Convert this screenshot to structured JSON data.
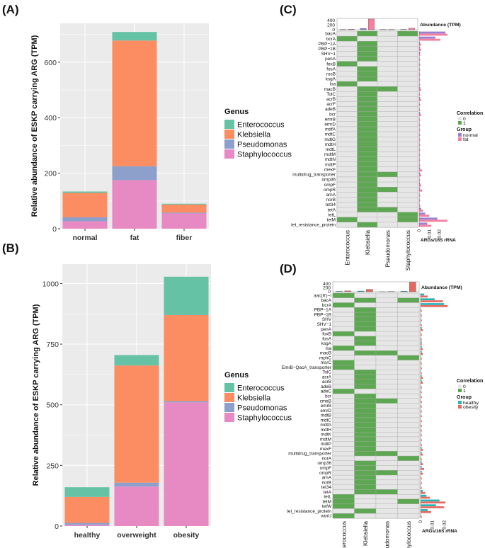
{
  "panels": {
    "a": "(A)",
    "b": "(B)",
    "c": "(C)",
    "d": "(D)"
  },
  "chart_data": [
    {
      "type": "bar",
      "stacked": true,
      "panel": "(A)",
      "ylabel": "Relative abundance of ESKP carrying ARG (TPM)",
      "categories": [
        "normal",
        "fat",
        "fiber"
      ],
      "yticks": [
        0,
        200,
        400,
        600
      ],
      "ylim": [
        0,
        740
      ],
      "legend_title": "Genus",
      "series": [
        {
          "name": "Staphylococcus",
          "color": "#E78AC3",
          "values": [
            27,
            175,
            55
          ]
        },
        {
          "name": "Pseudomonas",
          "color": "#8DA0CB",
          "values": [
            14,
            50,
            3
          ]
        },
        {
          "name": "Klebsiella",
          "color": "#FC8D62",
          "values": [
            88,
            453,
            29
          ]
        },
        {
          "name": "Enterococcus",
          "color": "#66C2A5",
          "values": [
            5,
            31,
            3
          ]
        }
      ]
    },
    {
      "type": "bar",
      "stacked": true,
      "panel": "(B)",
      "ylabel": "Relative abundance of ESKP carrying ARG (TPM)",
      "categories": [
        "healthy",
        "overweight",
        "obesity"
      ],
      "yticks": [
        0,
        250,
        500,
        750,
        1000
      ],
      "ylim": [
        0,
        1080
      ],
      "legend_title": "Genus",
      "series": [
        {
          "name": "Staphylococcus",
          "color": "#E78AC3",
          "values": [
            5,
            163,
            510
          ]
        },
        {
          "name": "Pseudomonas",
          "color": "#8DA0CB",
          "values": [
            8,
            16,
            5
          ]
        },
        {
          "name": "Klebsiella",
          "color": "#FC8D62",
          "values": [
            107,
            483,
            355
          ]
        },
        {
          "name": "Enterococcus",
          "color": "#66C2A5",
          "values": [
            40,
            43,
            158
          ]
        }
      ]
    },
    {
      "type": "heatmap",
      "panel": "(C)",
      "columns": [
        "Enterococcus",
        "Klebsiella",
        "Pseudomonas",
        "Staphylococcus"
      ],
      "rows": [
        "bacA",
        "bcrA",
        "PBP−1A",
        "PBP−1B",
        "SHV−1",
        "penA",
        "fexB",
        "fosA",
        "rosB",
        "ksgA",
        "lsa",
        "macB",
        "TolC",
        "acrB",
        "acrF",
        "adeB",
        "bcr",
        "emrB",
        "emrD",
        "mdfA",
        "mdtC",
        "mdtG",
        "mdtH",
        "mdtL",
        "mdtM",
        "mdtN",
        "mdtP",
        "mexF",
        "multidrug_transporter",
        "omp36",
        "ompF",
        "ompR",
        "arnA",
        "norB",
        "tet34",
        "tetA",
        "tetL",
        "tetM",
        "tet_resistance_protein"
      ],
      "matrix": [
        [
          0,
          1,
          0,
          1
        ],
        [
          1,
          0,
          0,
          0
        ],
        [
          0,
          1,
          0,
          0
        ],
        [
          0,
          1,
          0,
          0
        ],
        [
          0,
          1,
          0,
          0
        ],
        [
          0,
          1,
          0,
          0
        ],
        [
          1,
          0,
          0,
          0
        ],
        [
          0,
          1,
          0,
          0
        ],
        [
          0,
          1,
          0,
          0
        ],
        [
          0,
          1,
          0,
          0
        ],
        [
          1,
          0,
          0,
          0
        ],
        [
          0,
          1,
          1,
          0
        ],
        [
          0,
          1,
          0,
          0
        ],
        [
          0,
          1,
          0,
          0
        ],
        [
          0,
          1,
          0,
          0
        ],
        [
          0,
          1,
          0,
          0
        ],
        [
          0,
          1,
          0,
          0
        ],
        [
          0,
          1,
          0,
          0
        ],
        [
          0,
          1,
          0,
          0
        ],
        [
          0,
          1,
          0,
          0
        ],
        [
          0,
          1,
          0,
          0
        ],
        [
          0,
          1,
          0,
          0
        ],
        [
          0,
          1,
          0,
          0
        ],
        [
          0,
          1,
          0,
          0
        ],
        [
          0,
          1,
          0,
          0
        ],
        [
          0,
          1,
          0,
          0
        ],
        [
          0,
          1,
          0,
          0
        ],
        [
          0,
          1,
          0,
          0
        ],
        [
          0,
          1,
          1,
          0
        ],
        [
          0,
          1,
          0,
          0
        ],
        [
          0,
          1,
          0,
          0
        ],
        [
          0,
          1,
          1,
          0
        ],
        [
          0,
          1,
          0,
          0
        ],
        [
          0,
          1,
          0,
          0
        ],
        [
          0,
          1,
          0,
          0
        ],
        [
          0,
          1,
          1,
          0
        ],
        [
          0,
          0,
          0,
          1
        ],
        [
          1,
          0,
          0,
          1
        ],
        [
          0,
          1,
          0,
          0
        ]
      ],
      "top_bar_title": "Abundance (TPM)",
      "top_bar_ticks": [
        "400",
        "200",
        "0"
      ],
      "top_bar_max": 500,
      "top_bars": [
        [
          10,
          22
        ],
        [
          60,
          470
        ],
        [
          5,
          12
        ],
        [
          15,
          70
        ]
      ],
      "side_bar_title": "ARGs/16S rRNA",
      "side_bar_ticks": [
        "0",
        "0.01",
        "0.02"
      ],
      "side_bar_max": 0.028,
      "side_bars": [
        [
          0.026,
          0.028
        ],
        [
          0.016,
          0.021
        ],
        [
          0.001,
          0.002
        ],
        [
          0.001,
          0.002
        ],
        [
          0.001,
          0.001
        ],
        [
          0.0,
          0.001
        ],
        [
          0.0,
          0.001
        ],
        [
          0.0,
          0.001
        ],
        [
          0.0,
          0.001
        ],
        [
          0.0,
          0.001
        ],
        [
          0.0,
          0.001
        ],
        [
          0.001,
          0.002
        ],
        [
          0.0,
          0.001
        ],
        [
          0.001,
          0.002
        ],
        [
          0.0,
          0.001
        ],
        [
          0.0,
          0.001
        ],
        [
          0.001,
          0.002
        ],
        [
          0.0,
          0.001
        ],
        [
          0.0,
          0.001
        ],
        [
          0.0,
          0.001
        ],
        [
          0.0,
          0.001
        ],
        [
          0.0,
          0.001
        ],
        [
          0.0,
          0.001
        ],
        [
          0.0,
          0.001
        ],
        [
          0.0,
          0.001
        ],
        [
          0.0,
          0.001
        ],
        [
          0.0,
          0.001
        ],
        [
          0.001,
          0.003
        ],
        [
          0.001,
          0.002
        ],
        [
          0.0,
          0.001
        ],
        [
          0.001,
          0.002
        ],
        [
          0.001,
          0.003
        ],
        [
          0.0,
          0.001
        ],
        [
          0.0,
          0.001
        ],
        [
          0.0,
          0.001
        ],
        [
          0.002,
          0.004
        ],
        [
          0.006,
          0.01
        ],
        [
          0.018,
          0.028
        ],
        [
          0.008,
          0.012
        ]
      ],
      "legend": {
        "correlation_title": "Correlation",
        "corr0": "0",
        "corr1": "1",
        "group_title": "Group",
        "groups": [
          {
            "name": "normal",
            "color": "#9B7FD0"
          },
          {
            "name": "fat",
            "color": "#F47FA0"
          }
        ]
      }
    },
    {
      "type": "heatmap",
      "panel": "(D)",
      "columns": [
        "Enterococcus",
        "Klebsiella",
        "Pseudomonas",
        "Staphylococcus"
      ],
      "rows": [
        "aac(6')−I",
        "bacA",
        "bcrA",
        "PBP−1A",
        "PBP−1B",
        "SHV",
        "SHV−1",
        "penA",
        "foxB",
        "fosA",
        "ksgA",
        "lsa",
        "macB",
        "mphC",
        "msrC",
        "EmrB−QacA_transporter",
        "TolC",
        "acrA",
        "acrB",
        "adeB",
        "adeC",
        "bcr",
        "cmeB",
        "emrB",
        "emrD",
        "mdtB",
        "mdtC",
        "mdtG",
        "mdtH",
        "mdtK",
        "mdtM",
        "mdtP",
        "mexF",
        "multidrug_transporter",
        "norA",
        "omp36",
        "ompF",
        "ompR",
        "arnA",
        "norB",
        "tet34",
        "tetA",
        "tetL",
        "tetM",
        "tetW",
        "tet_resistance_protein",
        "vanU"
      ],
      "matrix": [
        [
          1,
          0,
          0,
          0
        ],
        [
          0,
          1,
          0,
          1
        ],
        [
          1,
          0,
          0,
          0
        ],
        [
          0,
          1,
          0,
          0
        ],
        [
          0,
          1,
          0,
          0
        ],
        [
          0,
          1,
          0,
          0
        ],
        [
          0,
          1,
          0,
          0
        ],
        [
          0,
          1,
          0,
          0
        ],
        [
          1,
          0,
          0,
          0
        ],
        [
          0,
          1,
          0,
          0
        ],
        [
          0,
          1,
          0,
          0
        ],
        [
          1,
          0,
          0,
          0
        ],
        [
          0,
          1,
          1,
          0
        ],
        [
          0,
          0,
          0,
          1
        ],
        [
          1,
          0,
          0,
          0
        ],
        [
          1,
          0,
          0,
          0
        ],
        [
          0,
          1,
          0,
          0
        ],
        [
          0,
          1,
          0,
          0
        ],
        [
          0,
          1,
          0,
          0
        ],
        [
          0,
          1,
          0,
          0
        ],
        [
          1,
          0,
          0,
          0
        ],
        [
          0,
          1,
          0,
          0
        ],
        [
          0,
          1,
          1,
          0
        ],
        [
          0,
          1,
          0,
          0
        ],
        [
          0,
          1,
          0,
          0
        ],
        [
          0,
          1,
          0,
          0
        ],
        [
          0,
          1,
          0,
          0
        ],
        [
          0,
          1,
          0,
          0
        ],
        [
          0,
          1,
          0,
          0
        ],
        [
          0,
          1,
          0,
          0
        ],
        [
          0,
          1,
          0,
          0
        ],
        [
          0,
          1,
          0,
          0
        ],
        [
          0,
          1,
          0,
          0
        ],
        [
          0,
          1,
          1,
          0
        ],
        [
          0,
          0,
          0,
          1
        ],
        [
          0,
          1,
          0,
          0
        ],
        [
          0,
          1,
          0,
          0
        ],
        [
          0,
          1,
          1,
          0
        ],
        [
          0,
          1,
          0,
          0
        ],
        [
          0,
          1,
          0,
          0
        ],
        [
          0,
          1,
          0,
          0
        ],
        [
          0,
          1,
          1,
          0
        ],
        [
          1,
          0,
          0,
          0
        ],
        [
          1,
          0,
          0,
          1
        ],
        [
          1,
          0,
          0,
          0
        ],
        [
          0,
          1,
          0,
          0
        ],
        [
          1,
          0,
          0,
          0
        ]
      ],
      "top_bar_title": "Abundance (TPM)",
      "top_bar_ticks": [
        "400",
        "200",
        "0"
      ],
      "top_bar_max": 500,
      "top_bars": [
        [
          20,
          40
        ],
        [
          35,
          120
        ],
        [
          3,
          8
        ],
        [
          30,
          480
        ]
      ],
      "side_bar_title": "ARGs/16S rRNA",
      "side_bar_ticks": [
        "0",
        "0.01",
        "0.02"
      ],
      "side_bar_max": 0.024,
      "side_bars": [
        [
          0.003,
          0.006
        ],
        [
          0.012,
          0.019
        ],
        [
          0.02,
          0.023
        ],
        [
          0.0,
          0.001
        ],
        [
          0.0,
          0.001
        ],
        [
          0.0,
          0.001
        ],
        [
          0.0,
          0.001
        ],
        [
          0.001,
          0.002
        ],
        [
          0.0,
          0.001
        ],
        [
          0.0,
          0.001
        ],
        [
          0.001,
          0.001
        ],
        [
          0.001,
          0.002
        ],
        [
          0.001,
          0.002
        ],
        [
          0.0,
          0.001
        ],
        [
          0.0,
          0.001
        ],
        [
          0.0,
          0.001
        ],
        [
          0.0,
          0.001
        ],
        [
          0.001,
          0.002
        ],
        [
          0.001,
          0.002
        ],
        [
          0.0,
          0.001
        ],
        [
          0.0,
          0.001
        ],
        [
          0.0,
          0.001
        ],
        [
          0.0,
          0.001
        ],
        [
          0.0,
          0.001
        ],
        [
          0.0,
          0.001
        ],
        [
          0.0,
          0.001
        ],
        [
          0.0,
          0.001
        ],
        [
          0.0,
          0.001
        ],
        [
          0.0,
          0.001
        ],
        [
          0.0,
          0.001
        ],
        [
          0.0,
          0.001
        ],
        [
          0.0,
          0.001
        ],
        [
          0.001,
          0.002
        ],
        [
          0.001,
          0.002
        ],
        [
          0.0,
          0.001
        ],
        [
          0.001,
          0.002
        ],
        [
          0.001,
          0.003
        ],
        [
          0.001,
          0.002
        ],
        [
          0.0,
          0.001
        ],
        [
          0.0,
          0.001
        ],
        [
          0.0,
          0.001
        ],
        [
          0.002,
          0.004
        ],
        [
          0.005,
          0.008
        ],
        [
          0.016,
          0.021
        ],
        [
          0.013,
          0.02
        ],
        [
          0.006,
          0.009
        ],
        [
          0.0,
          0.001
        ]
      ],
      "legend": {
        "correlation_title": "Correlation",
        "corr0": "0",
        "corr1": "1",
        "group_title": "Group",
        "groups": [
          {
            "name": "healthy",
            "color": "#2BB3B8"
          },
          {
            "name": "obesity",
            "color": "#E4695E"
          }
        ]
      }
    }
  ],
  "colors": {
    "panel_bg": "#EBEBEB",
    "grid": "#FFFFFF",
    "corr0": "#E6E6E6",
    "corr1": "#5EA752"
  }
}
